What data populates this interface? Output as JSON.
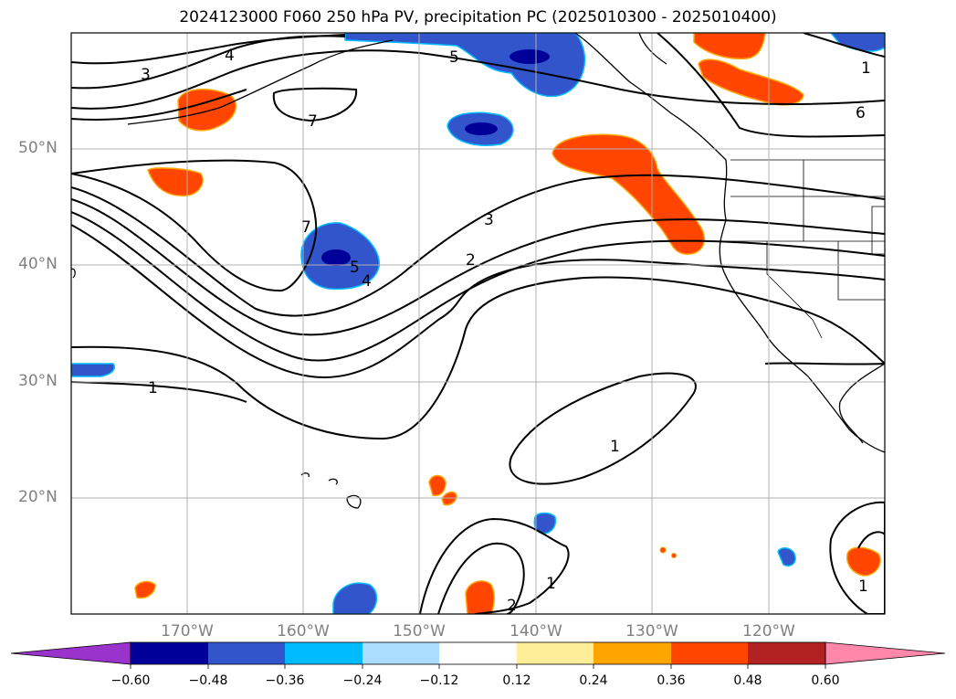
{
  "title": "2024123000 F060 250 hPa PV, precipitation PC (2025010300 - 2025010400)",
  "lat_labels": [
    "50°N",
    "40°N",
    "30°N",
    "20°N"
  ],
  "lon_labels": [
    "170°W",
    "160°W",
    "150°W",
    "140°W",
    "130°W",
    "120°W"
  ],
  "contour_labels": [
    "3",
    "4",
    "5",
    "6",
    "1",
    "7",
    "7",
    "3",
    "2",
    "5",
    "4",
    "1",
    "1",
    "1",
    "2",
    "1"
  ],
  "colorbar": {
    "ticks": [
      "−0.60",
      "−0.48",
      "−0.36",
      "−0.24",
      "−0.12",
      "0.12",
      "0.24",
      "0.36",
      "0.48",
      "0.60"
    ],
    "colors": [
      "#9933cc",
      "#000099",
      "#3355cc",
      "#00bbff",
      "#aaddff",
      "#ffffff",
      "#ffee99",
      "#ffa500",
      "#ff4500",
      "#b22222",
      "#ff88aa"
    ]
  }
}
